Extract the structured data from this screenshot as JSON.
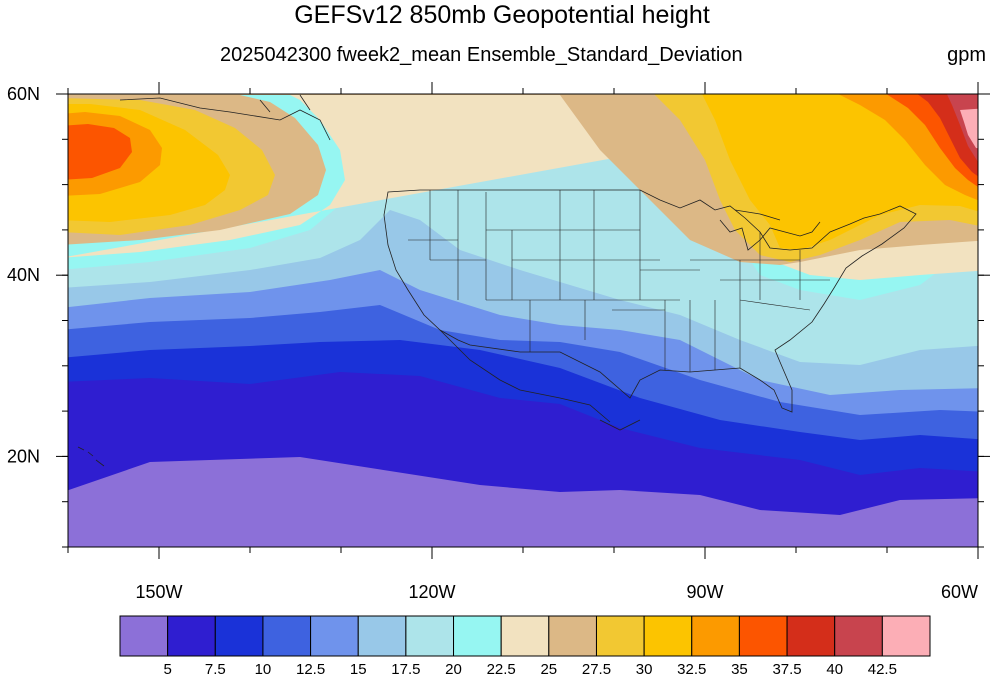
{
  "title": "GEFSv12 850mb Geopotential height",
  "subtitle": "2025042300 fweek2_mean Ensemble_Standard_Deviation",
  "units": "gpm",
  "map": {
    "lon_range": [
      -160,
      -60
    ],
    "lat_range": [
      10,
      60
    ],
    "lon_ticks": [
      {
        "lon": -150,
        "label": "150W"
      },
      {
        "lon": -120,
        "label": "120W"
      },
      {
        "lon": -90,
        "label": "90W"
      },
      {
        "lon": -60,
        "label": "60W"
      }
    ],
    "lat_ticks": [
      {
        "lat": 60,
        "label": "60N"
      },
      {
        "lat": 40,
        "label": "40N"
      },
      {
        "lat": 20,
        "label": "20N"
      }
    ]
  },
  "colorbar": {
    "colors": [
      "#8c70d8",
      "#2f1ed0",
      "#1a32d8",
      "#3e62e0",
      "#6f93ec",
      "#98c8e8",
      "#ade4ea",
      "#96f6f2",
      "#f2e2c0",
      "#dcb886",
      "#f2c832",
      "#fcc400",
      "#fc9a00",
      "#fc5500",
      "#d42e1a",
      "#c8444e",
      "#fcaeb6"
    ],
    "labels": [
      "5",
      "7.5",
      "10",
      "12.5",
      "15",
      "17.5",
      "20",
      "22.5",
      "25",
      "27.5",
      "30",
      "32.5",
      "35",
      "37.5",
      "40",
      "42.5"
    ]
  }
}
